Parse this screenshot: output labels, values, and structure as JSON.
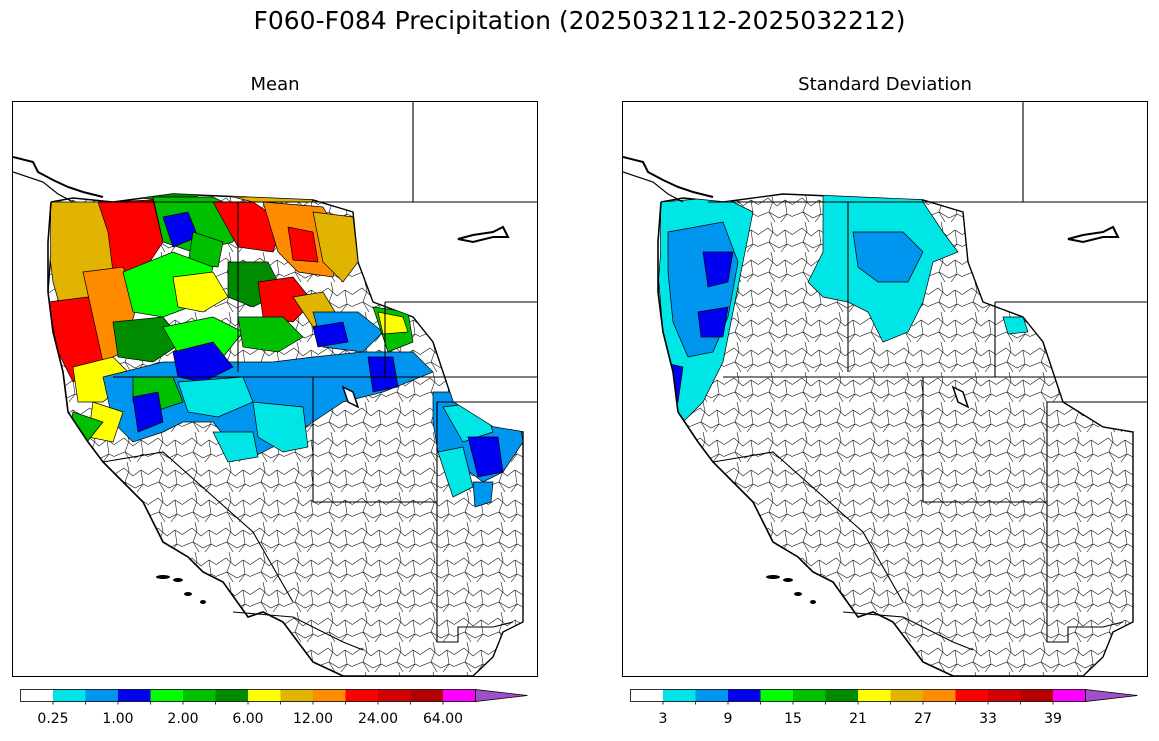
{
  "title": "F060-F084 Precipitation (2025032112-2025032212)",
  "panels": [
    {
      "title": "Mean",
      "colorbar": {
        "colors": [
          "#ffffff",
          "#00e5e5",
          "#0096f0",
          "#0000f0",
          "#00ff00",
          "#00c000",
          "#008c00",
          "#ffff00",
          "#e0b400",
          "#ff8c00",
          "#ff0000",
          "#d20000",
          "#b40000",
          "#ff00ff",
          "#9e50c8"
        ],
        "tick_labels": [
          "0.25",
          "1.00",
          "2.00",
          "6.00",
          "12.00",
          "24.00",
          "64.00"
        ],
        "extend": "max"
      }
    },
    {
      "title": "Standard Deviation",
      "colorbar": {
        "colors": [
          "#ffffff",
          "#00e5e5",
          "#0096f0",
          "#0000f0",
          "#00ff00",
          "#00c000",
          "#008c00",
          "#ffff00",
          "#e0b400",
          "#ff8c00",
          "#ff0000",
          "#d20000",
          "#b40000",
          "#ff00ff",
          "#9e50c8"
        ],
        "tick_labels": [
          "3",
          "9",
          "15",
          "21",
          "27",
          "33",
          "39"
        ],
        "extend": "max"
      }
    }
  ]
}
